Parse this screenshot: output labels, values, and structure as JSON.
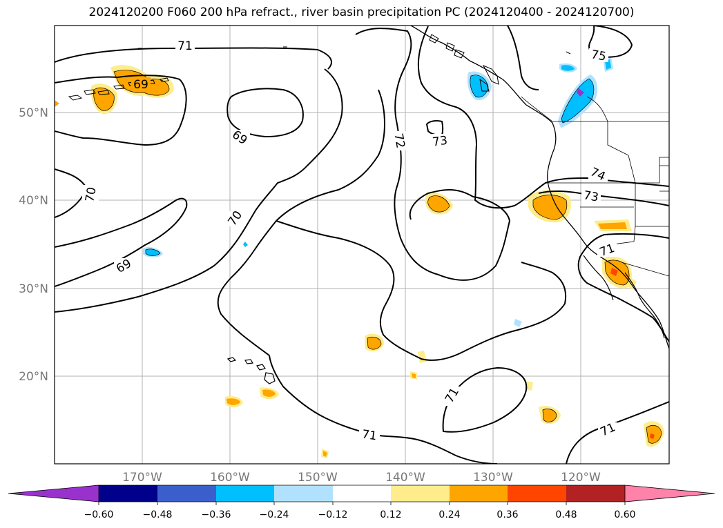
{
  "title": "2024120200 F060 200 hPa refract., river basin precipitation PC (2024120400 - 2024120700)",
  "lat_labels": [
    "50°N",
    "40°N",
    "30°N",
    "20°N"
  ],
  "lon_labels": [
    "170°W",
    "160°W",
    "150°W",
    "140°W",
    "130°W",
    "120°W"
  ],
  "contour_labels": [
    "71",
    "69",
    "69",
    "70",
    "70",
    "69",
    "72",
    "73",
    "74",
    "73",
    "71",
    "75",
    "71",
    "71",
    "71"
  ],
  "colorbar": {
    "ticks": [
      "−0.60",
      "−0.48",
      "−0.36",
      "−0.24",
      "−0.12",
      "0.12",
      "0.24",
      "0.36",
      "0.48",
      "0.60"
    ],
    "colors": [
      "#9932cc",
      "#00008b",
      "#3a5fcd",
      "#00bfff",
      "#b0e2ff",
      "#ffffff",
      "#ffec8b",
      "#ffa500",
      "#ff4500",
      "#b22222",
      "#ff82ab",
      "#ff82ab"
    ]
  },
  "chart_data": {
    "type": "map",
    "projection": "lat-lon",
    "lon_range": [
      -180,
      -110
    ],
    "lat_range": [
      10,
      60
    ],
    "grid": true,
    "contour_levels": [
      69,
      70,
      71,
      72,
      73,
      74,
      75
    ],
    "colorbar_levels": [
      -0.6,
      -0.48,
      -0.36,
      -0.24,
      -0.12,
      0.12,
      0.24,
      0.36,
      0.48,
      0.6
    ]
  }
}
